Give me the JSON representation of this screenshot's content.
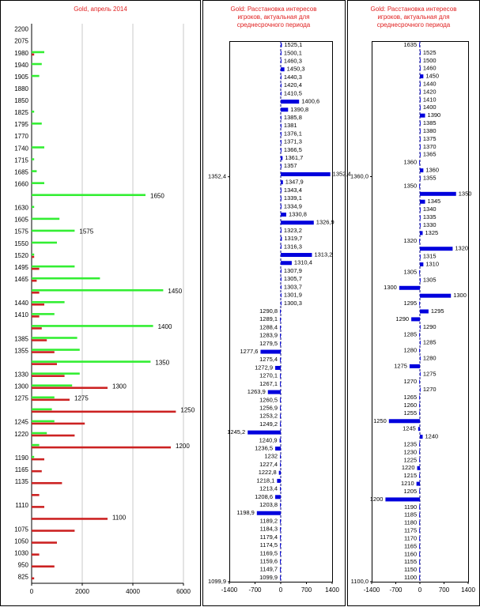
{
  "chart_data": [
    {
      "type": "bar",
      "orientation": "horizontal",
      "title": "Gold, апрель 2014",
      "categories": [
        "2200",
        "2075",
        "1980",
        "1940",
        "1905",
        "1880",
        "1850",
        "1825",
        "1795",
        "1770",
        "1740",
        "1715",
        "1685",
        "1660",
        null,
        "1630",
        "1605",
        "1575",
        "1550",
        "1520",
        "1495",
        "1465",
        null,
        "1440",
        "1410",
        null,
        "1385",
        "1355",
        null,
        "1330",
        "1300",
        "1275",
        null,
        "1245",
        "1220",
        null,
        "1190",
        "1165",
        "1135",
        null,
        "1110",
        null,
        "1075",
        "1050",
        "1030",
        "950",
        "825"
      ],
      "series": [
        {
          "color": "#33ee33",
          "values": [
            0,
            0,
            500,
            400,
            300,
            0,
            0,
            100,
            400,
            0,
            500,
            100,
            200,
            500,
            4500,
            100,
            1100,
            1700,
            1000,
            100,
            1700,
            2700,
            5200,
            1300,
            900,
            4800,
            1800,
            1900,
            4700,
            1900,
            1600,
            900,
            800,
            900,
            600,
            300,
            100,
            0,
            0,
            0,
            0,
            0,
            0,
            0,
            0,
            0,
            0
          ]
        },
        {
          "color": "#cc2222",
          "values": [
            0,
            0,
            100,
            0,
            0,
            0,
            0,
            0,
            0,
            0,
            0,
            0,
            0,
            0,
            0,
            0,
            0,
            0,
            0,
            100,
            300,
            200,
            300,
            500,
            300,
            400,
            600,
            900,
            1000,
            1300,
            3000,
            1500,
            5700,
            2100,
            1700,
            5500,
            500,
            400,
            1200,
            300,
            500,
            3000,
            1700,
            1000,
            300,
            900,
            100
          ]
        }
      ],
      "bar_labels": [
        null,
        null,
        null,
        null,
        null,
        null,
        null,
        null,
        null,
        null,
        null,
        null,
        null,
        null,
        "1650",
        null,
        null,
        "1575",
        null,
        null,
        null,
        null,
        "1450",
        null,
        null,
        "1400",
        null,
        null,
        "1350",
        null,
        "1300",
        "1275",
        "1250",
        null,
        null,
        "1200",
        null,
        null,
        null,
        null,
        null,
        "1100",
        null,
        null,
        null,
        null,
        null
      ],
      "xlim": [
        0,
        6000
      ],
      "xticks": [
        0,
        2000,
        4000,
        6000
      ],
      "grid": true
    },
    {
      "type": "bar",
      "orientation": "horizontal",
      "title": [
        "Gold: Расстановка интересов",
        "игроков, актуальная  для",
        "среднесрочного периода"
      ],
      "categories": [
        "1525,1",
        "1500,1",
        "1460,3",
        "1450,3",
        "1440,3",
        "1420,4",
        "1410,5",
        "1400,6",
        "1390,8",
        "1385,8",
        "1381",
        "1376,1",
        "1371,3",
        "1366,5",
        "1361,7",
        "1357",
        "1352,4",
        "1347,9",
        "1343,4",
        "1339,1",
        "1334,9",
        "1330,8",
        "1326,9",
        "1323,2",
        "1319,7",
        "1316,3",
        "1313,2",
        "1310,4",
        "1307,9",
        "1305,7",
        "1303,7",
        "1301,9",
        "1300,3",
        "1290,8",
        "1289,1",
        "1288,4",
        "1283,9",
        "1279,5",
        "1277,6",
        "1275,4",
        "1272,9",
        "1270,1",
        "1267,1",
        "1263,9",
        "1260,5",
        "1256,9",
        "1253,2",
        "1249,2",
        "1245,2",
        "1240,9",
        "1236,5",
        "1232",
        "1227,4",
        "1222,8",
        "1218,1",
        "1213,4",
        "1208,6",
        "1203,8",
        "1198,9",
        "1189,2",
        "1184,3",
        "1179,4",
        "1174,5",
        "1169,5",
        "1159,6",
        "1149,7",
        "1099,9"
      ],
      "values": [
        30,
        20,
        20,
        100,
        20,
        20,
        20,
        500,
        200,
        20,
        20,
        20,
        20,
        20,
        50,
        20,
        1350,
        60,
        20,
        20,
        20,
        150,
        900,
        20,
        30,
        20,
        850,
        300,
        20,
        20,
        20,
        20,
        20,
        -20,
        -20,
        -20,
        -20,
        -20,
        -550,
        -20,
        -150,
        -20,
        -20,
        -350,
        -20,
        -20,
        -20,
        -20,
        -900,
        -30,
        -150,
        -20,
        -20,
        -50,
        -100,
        -20,
        -150,
        -20,
        -650,
        -20,
        -20,
        -20,
        -20,
        -20,
        -20,
        -20,
        -20
      ],
      "color": "#0000dd",
      "xlim": [
        -1400,
        1400
      ],
      "xticks": [
        -1400,
        -700,
        0,
        700,
        1400
      ],
      "ylim": [
        1099.9,
        1437
      ],
      "yticks": [
        {
          "value": 1352.4,
          "label": "1352,4"
        },
        {
          "value": 1099.9,
          "label": "1099,9"
        }
      ]
    },
    {
      "type": "bar",
      "orientation": "horizontal",
      "title": [
        "Gold: Расстановка интересов",
        "игроков, актуальная для",
        "среднесрочного периода"
      ],
      "categories": [
        "1635",
        "1525",
        "1500",
        "1460",
        "1450",
        "1440",
        "1420",
        "1410",
        "1400",
        "1390",
        "1385",
        "1380",
        "1375",
        "1370",
        "1365",
        "1360",
        "1360",
        "1355",
        "1350",
        "1350",
        "1345",
        "1340",
        "1335",
        "1330",
        "1325",
        "1320",
        "1320",
        "1315",
        "1310",
        "1305",
        "1305",
        "1300",
        "1300",
        "1295",
        "1295",
        "1290",
        "1290",
        "1285",
        "1285",
        "1280",
        "1280",
        "1275",
        "1275",
        "1270",
        "1270",
        "1265",
        "1260",
        "1255",
        "1250",
        "1245",
        "1240",
        "1235",
        "1230",
        "1225",
        "1220",
        "1215",
        "1210",
        "1205",
        "1200",
        "1190",
        "1185",
        "1180",
        "1175",
        "1170",
        "1165",
        "1160",
        "1155",
        "1150",
        "1100"
      ],
      "values": [
        -20,
        20,
        20,
        20,
        100,
        20,
        20,
        20,
        20,
        150,
        20,
        20,
        20,
        20,
        20,
        -20,
        100,
        20,
        -20,
        1050,
        150,
        20,
        20,
        20,
        80,
        -20,
        950,
        20,
        100,
        -20,
        20,
        -600,
        900,
        -20,
        250,
        -250,
        20,
        -20,
        20,
        -20,
        20,
        -300,
        20,
        -20,
        20,
        -20,
        -20,
        -20,
        -900,
        -50,
        80,
        -20,
        -20,
        -20,
        -80,
        -20,
        -100,
        -20,
        -1000,
        -20,
        -20,
        -20,
        -20,
        -20,
        -20,
        -20,
        -20,
        -20,
        -20
      ],
      "color": "#0000dd",
      "xlim": [
        -1400,
        1400
      ],
      "xticks": [
        -1400,
        -700,
        0,
        700,
        1400
      ],
      "ylim": [
        1100,
        1447
      ],
      "yticks": [
        {
          "value": 1360,
          "label": "1360,0"
        },
        {
          "value": 1100,
          "label": "1100,0"
        }
      ]
    }
  ]
}
